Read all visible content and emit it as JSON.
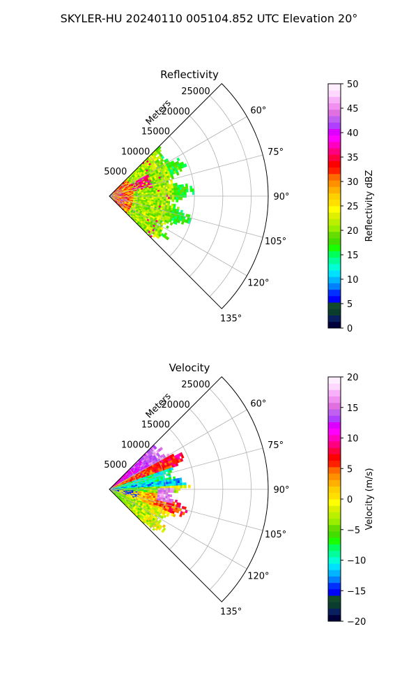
{
  "suptitle": "SKYLER-HU  20240110  005104.852 UTC Elevation 20°",
  "chart_data": [
    {
      "type": "heatmap",
      "subtype": "polar-sector (PPI)",
      "title": "Reflectivity",
      "radial_label": "Meters",
      "radial_ticks": [
        "5000",
        "10000",
        "15000",
        "20000",
        "25000"
      ],
      "radial_range": [
        0,
        28000
      ],
      "angle_ticks": [
        "60°",
        "75°",
        "90°",
        "105°",
        "120°",
        "135°"
      ],
      "angle_range_deg": [
        45,
        135
      ],
      "grid": true,
      "data_extent_m": 15000,
      "colorbar": {
        "label": "Reflectivity dBZ",
        "min": 0,
        "max": 50,
        "ticks": [
          "0",
          "5",
          "10",
          "15",
          "20",
          "25",
          "30",
          "35",
          "40",
          "45",
          "50"
        ],
        "colors": [
          "#00003a",
          "#0a1f5e",
          "#0b3d2e",
          "#114a2b",
          "#0000ff",
          "#0030ff",
          "#0080ff",
          "#00b4ff",
          "#00e0ff",
          "#00ffd5",
          "#00ff9a",
          "#00ff5a",
          "#1aff00",
          "#44dd00",
          "#66dd00",
          "#99ee00",
          "#bbf000",
          "#ddf000",
          "#ffff00",
          "#ffe000",
          "#ffd000",
          "#ffb000",
          "#ff9000",
          "#ff6a00",
          "#ff2000",
          "#ff0000",
          "#ff0040",
          "#ff0080",
          "#ff00c0",
          "#ff00ff",
          "#dd00ff",
          "#b040ff",
          "#c060f0",
          "#e070e0",
          "#f090f0",
          "#f8b0f8",
          "#ffd8ff",
          "#ffeeff"
        ]
      }
    },
    {
      "type": "heatmap",
      "subtype": "polar-sector (PPI)",
      "title": "Velocity",
      "radial_label": "Meters",
      "radial_ticks": [
        "5000",
        "10000",
        "15000",
        "20000",
        "25000"
      ],
      "radial_range": [
        0,
        28000
      ],
      "angle_ticks": [
        "60°",
        "75°",
        "90°",
        "105°",
        "120°",
        "135°"
      ],
      "angle_range_deg": [
        45,
        135
      ],
      "grid": true,
      "data_extent_m": 15000,
      "colorbar": {
        "label": "Velocity (m/s)",
        "min": -20,
        "max": 20,
        "ticks": [
          "−20",
          "−15",
          "−10",
          "−5",
          "0",
          "5",
          "10",
          "15",
          "20"
        ],
        "colors": [
          "#00003a",
          "#0a1f5e",
          "#0b3d2e",
          "#114a2b",
          "#0000ff",
          "#0030ff",
          "#0080ff",
          "#00b4ff",
          "#00e0ff",
          "#00ffd5",
          "#00ff9a",
          "#00ff5a",
          "#1aff00",
          "#44dd00",
          "#66dd00",
          "#99ee00",
          "#bbf000",
          "#ddf000",
          "#ffff00",
          "#ffe000",
          "#ffd000",
          "#ffb000",
          "#ff9000",
          "#ff6a00",
          "#ff2000",
          "#ff0000",
          "#ff0040",
          "#ff0080",
          "#ff00c0",
          "#ff00ff",
          "#dd00ff",
          "#b040ff",
          "#c060f0",
          "#e070e0",
          "#f090f0",
          "#f8b0f8",
          "#ffd8ff",
          "#ffeeff"
        ]
      }
    }
  ]
}
